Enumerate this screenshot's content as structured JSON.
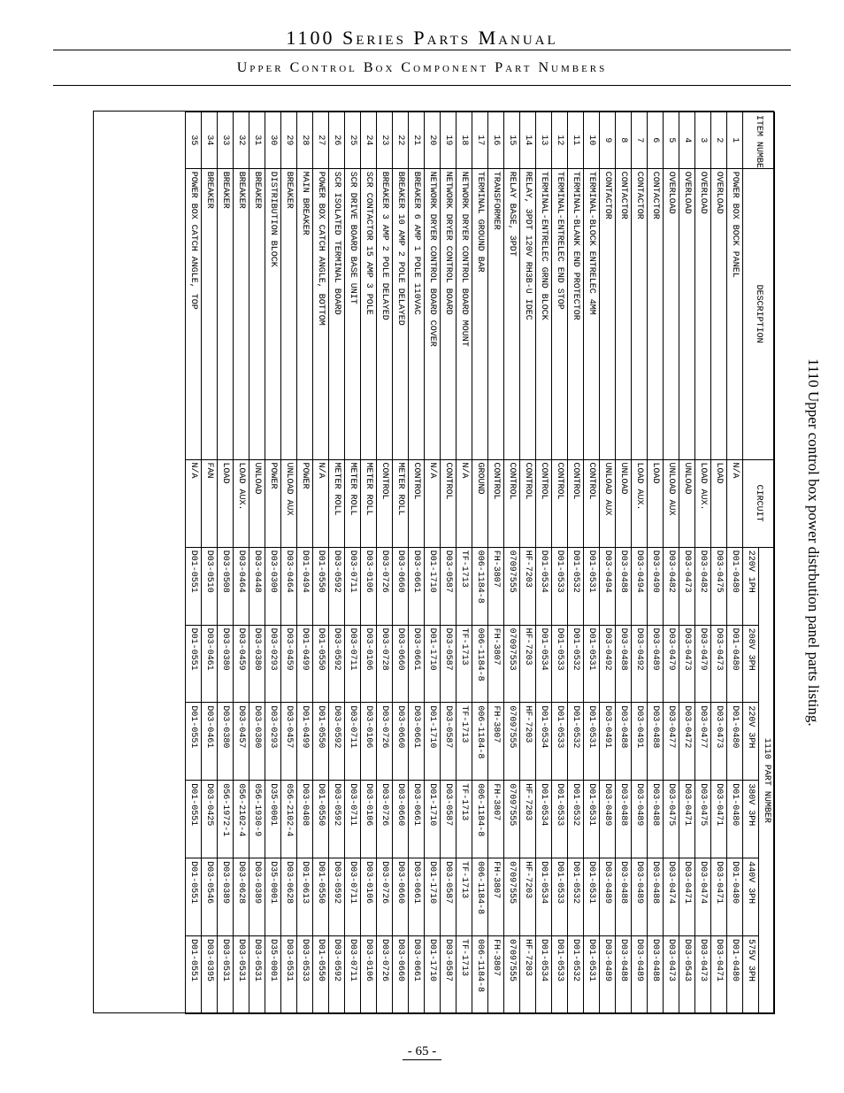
{
  "page": {
    "title": "1100 Series Parts Manual",
    "subtitle": "Upper Control Box Component Part Numbers",
    "side_caption": "1110 Upper control box power distrbution panel parts listing.",
    "page_number": "- 65 -"
  },
  "table": {
    "header_group": "1110 PART NUMBER",
    "columns": [
      "ITEM NUMBER",
      "DESCRIPTION",
      "CIRCUIT",
      "220V 1PH",
      "208V 3PH",
      "220V 3PH",
      "380V 3PH",
      "440V 3PH",
      "575V 3PH"
    ],
    "col_classes": [
      "col-item",
      "col-desc",
      "col-circ",
      "col-pn",
      "col-pn",
      "col-pn",
      "col-pn",
      "col-pn",
      "col-pn"
    ],
    "rows": [
      [
        "1",
        "POWER BOX BOCK PANEL",
        "N/A",
        "D01-0480",
        "D01-0480",
        "D01-0480",
        "D01-0480",
        "D01-0480",
        "D01-0480"
      ],
      [
        "2",
        "OVERLOAD",
        "LOAD",
        "D03-0475",
        "D03-0473",
        "D03-0473",
        "D03-0471",
        "D03-0471",
        "D03-0471"
      ],
      [
        "3",
        "OVERLOAD",
        "LOAD AUX.",
        "D03-0482",
        "D03-0479",
        "D03-0477",
        "D03-0475",
        "D03-0474",
        "D03-0473"
      ],
      [
        "4",
        "OVERLOAD",
        "UNLOAD",
        "D03-0473",
        "D03-0473",
        "D03-0472",
        "D03-0471",
        "D03-0471",
        "D03-0543"
      ],
      [
        "5",
        "OVERLOAD",
        "UNLOAD AUX",
        "D03-0482",
        "D03-0479",
        "D03-0477",
        "D03-0475",
        "D03-0474",
        "D03-0473"
      ],
      [
        "6",
        "CONTACTOR",
        "LOAD",
        "D03-0490",
        "D03-0489",
        "D03-0488",
        "D03-0488",
        "D03-0488",
        "D03-0488"
      ],
      [
        "7",
        "CONTACTOR",
        "LOAD AUX.",
        "D03-0494",
        "D03-0492",
        "D03-0491",
        "D03-0489",
        "D03-0489",
        "D03-0489"
      ],
      [
        "8",
        "CONTACTOR",
        "UNLOAD",
        "D03-0488",
        "D03-0488",
        "D03-0488",
        "D03-0488",
        "D03-0488",
        "D03-0488"
      ],
      [
        "9",
        "CONTACTOR",
        "UNLOAD AUX",
        "D03-0494",
        "D03-0492",
        "D03-0491",
        "D03-0489",
        "D03-0489",
        "D03-0489"
      ],
      [
        "10",
        "TERMINAL-BLOCK ENTRELEC 4MM",
        "CONTROL",
        "D01-0531",
        "D01-0531",
        "D01-0531",
        "D01-0531",
        "D01-0531",
        "D01-0531"
      ],
      [
        "11",
        "TERMINAL-BLANK END PROTECTOR",
        "CONTROL",
        "D01-0532",
        "D01-0532",
        "D01-0532",
        "D01-0532",
        "D01-0532",
        "D01-0532"
      ],
      [
        "12",
        "TERMINAL-ENTRELEC END STOP",
        "CONTROL",
        "D01-0533",
        "D01-0533",
        "D01-0533",
        "D01-0533",
        "D01-0533",
        "D01-0533"
      ],
      [
        "13",
        "TERMINAL-ENTRELEC GRND BLOCK",
        "CONTROL",
        "D01-0534",
        "D01-0534",
        "D01-0534",
        "D01-0534",
        "D01-0534",
        "D01-0534"
      ],
      [
        "14",
        "RELAY, 3PDT 120V RH3B-U IDEC",
        "CONTROL",
        "HF-7203",
        "HF-7203",
        "HF-7203",
        "HF-7203",
        "HF-7203",
        "HF-7203"
      ],
      [
        "15",
        "RELAY BASE, 3PDT",
        "CONTROL",
        "07097555",
        "07097553",
        "07097555",
        "07097555",
        "07097555",
        "07097555"
      ],
      [
        "16",
        "TRANSFORMER",
        "CONTROL",
        "FH-3807",
        "FH-3807",
        "FH-3807",
        "FH-3807",
        "FH-3807",
        "FH-3807"
      ],
      [
        "17",
        "TERMINAL GROUND BAR",
        "GROUND",
        "006-1184-8",
        "006-1184-8",
        "006-1184-8",
        "006-1184-8",
        "006-1184-8",
        "006-1184-8"
      ],
      [
        "18",
        "NETWORK DRYER CONTROL BOARD MOUNT",
        "N/A",
        "TF-1713",
        "TF-1713",
        "TF-1713",
        "TF-1713",
        "TF-1713",
        "TF-1713"
      ],
      [
        "19",
        "NETWORK DRYER CONTROL BOARD",
        "CONTROL",
        "D03-0587",
        "D03-0587",
        "D03-0587",
        "D03-0587",
        "D03-0587",
        "D03-0587"
      ],
      [
        "20",
        "NETWORK DRYER CONTROL BOARD COVER",
        "N/A",
        "D01-1710",
        "D01-1710",
        "D01-1710",
        "D01-1710",
        "D01-1710",
        "D01-1710"
      ],
      [
        "21",
        "BREAKER 6 AMP 1 POLE 110VAC",
        "CONTROL",
        "D03-0661",
        "D03-0661",
        "D03-0661",
        "D03-0661",
        "D03-0661",
        "D03-0661"
      ],
      [
        "22",
        "BREAKER 10 AMP 2 POLE DELAYED",
        "METER ROLL",
        "D03-0660",
        "D03-0660",
        "D03-0660",
        "D03-0660",
        "D03-0660",
        "D03-0660"
      ],
      [
        "23",
        "BREAKER 3 AMP 2 POLE DELAYED",
        "CONTROL",
        "D03-0726",
        "D03-0728",
        "D03-0726",
        "D03-0726",
        "D03-0726",
        "D03-0726"
      ],
      [
        "24",
        "SCR CONTACTOR 15 AMP 3 POLE",
        "METER ROLL",
        "D03-0106",
        "D03-0106",
        "D03-0106",
        "D03-0106",
        "D03-0106",
        "D03-0106"
      ],
      [
        "25",
        "SCR DRIVE BOARD BASE UNIT",
        "METER ROLL",
        "D03-0711",
        "D03-0711",
        "D03-0711",
        "D03-0711",
        "D03-0711",
        "D03-0711"
      ],
      [
        "26",
        "SCR ISOLATED TERMINAL BOARD",
        "METER ROLL",
        "D03-0592",
        "D03-0592",
        "D03-0592",
        "D03-0592",
        "D03-0592",
        "D03-0592"
      ],
      [
        "27",
        "POWER BOX CATCH ANGLE, BOTTOM",
        "N/A",
        "D01-0550",
        "D01-0550",
        "D01-0550",
        "D01-0550",
        "D01-0550",
        "D01-0550"
      ],
      [
        "28",
        "MAIN BREAKER",
        "POWER",
        "D01-0494",
        "D01-0499",
        "D01-0499",
        "D03-0408",
        "D01-0613",
        "D03-0533"
      ],
      [
        "29",
        "BREAKER",
        "UNLOAD AUX",
        "D03-0464",
        "D03-0459",
        "D03-0457",
        "056-2102-4",
        "D03-0628",
        "D03-0531"
      ],
      [
        "30",
        "DISTRIBUTION BLOCK",
        "POWER",
        "D03-0300",
        "D03-0293",
        "D03-0293",
        "D35-0001",
        "D35-0001",
        "D35-0001"
      ],
      [
        "31",
        "BREAKER",
        "UNLOAD",
        "D03-0448",
        "D03-0380",
        "D03-0380",
        "056-1930-9",
        "D03-0389",
        "D03-0531"
      ],
      [
        "32",
        "BREAKER",
        "LOAD AUX.",
        "D03-0464",
        "D03-0459",
        "D03-0457",
        "056-2102-4",
        "D03-0628",
        "D03-0531"
      ],
      [
        "33",
        "BREAKER",
        "LOAD",
        "D03-0508",
        "D03-0380",
        "D03-0380",
        "056-1972-1",
        "D03-0389",
        "D03-0531"
      ],
      [
        "34",
        "BREAKER",
        "FAN",
        "D03-0510",
        "D03-0461",
        "D03-0461",
        "D03-0425",
        "D03-0546",
        "D03-0395"
      ],
      [
        "35",
        "POWER BOX CATCH ANGLE, TOP",
        "N/A",
        "D01-0551",
        "D01-0551",
        "D01-0551",
        "D01-0551",
        "D01-0551",
        "D01-0551"
      ]
    ]
  }
}
